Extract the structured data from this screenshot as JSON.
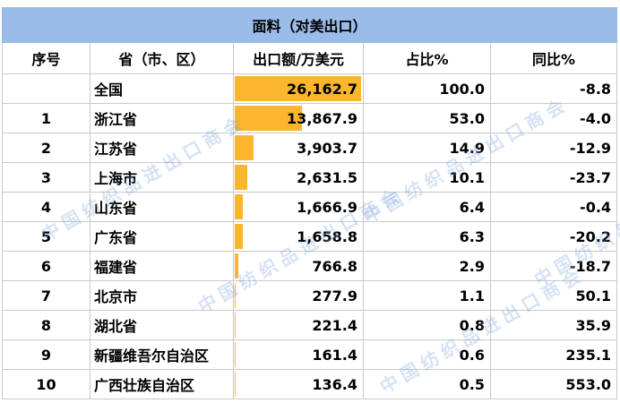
{
  "title": "面料（对美出口）",
  "headers": {
    "index": "序号",
    "province": "省（市、区）",
    "export": "出口额/万美元",
    "share": "占比%",
    "yoy": "同比%"
  },
  "colors": {
    "title_bg": "#9bbbe8",
    "bar": "#fbb52e"
  },
  "bar_max_value": 26162.7,
  "rows": [
    {
      "index": "",
      "province": "全国",
      "export": "26,162.7",
      "export_value": 26162.7,
      "share": "100.0",
      "yoy": "-8.8"
    },
    {
      "index": "1",
      "province": "浙江省",
      "export": "13,867.9",
      "export_value": 13867.9,
      "share": "53.0",
      "yoy": "-4.0"
    },
    {
      "index": "2",
      "province": "江苏省",
      "export": "3,903.7",
      "export_value": 3903.7,
      "share": "14.9",
      "yoy": "-12.9"
    },
    {
      "index": "3",
      "province": "上海市",
      "export": "2,631.5",
      "export_value": 2631.5,
      "share": "10.1",
      "yoy": "-23.7"
    },
    {
      "index": "4",
      "province": "山东省",
      "export": "1,666.9",
      "export_value": 1666.9,
      "share": "6.4",
      "yoy": "-0.4"
    },
    {
      "index": "5",
      "province": "广东省",
      "export": "1,658.8",
      "export_value": 1658.8,
      "share": "6.3",
      "yoy": "-20.2"
    },
    {
      "index": "6",
      "province": "福建省",
      "export": "766.8",
      "export_value": 766.8,
      "share": "2.9",
      "yoy": "-18.7"
    },
    {
      "index": "7",
      "province": "北京市",
      "export": "277.9",
      "export_value": 277.9,
      "share": "1.1",
      "yoy": "50.1"
    },
    {
      "index": "8",
      "province": "湖北省",
      "export": "221.4",
      "export_value": 221.4,
      "share": "0.8",
      "yoy": "35.9"
    },
    {
      "index": "9",
      "province": "新疆维吾尔自治区",
      "export": "161.4",
      "export_value": 161.4,
      "share": "0.6",
      "yoy": "235.1"
    },
    {
      "index": "10",
      "province": "广西壮族自治区",
      "export": "136.4",
      "export_value": 136.4,
      "share": "0.5",
      "yoy": "553.0"
    }
  ],
  "watermark": "中国纺织品进出口商会"
}
